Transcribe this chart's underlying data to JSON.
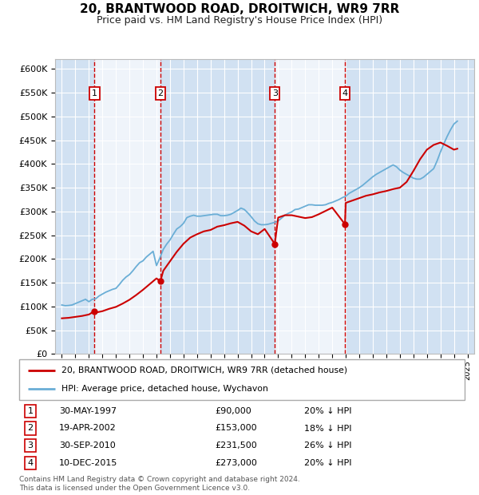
{
  "title": "20, BRANTWOOD ROAD, DROITWICH, WR9 7RR",
  "subtitle": "Price paid vs. HM Land Registry's House Price Index (HPI)",
  "ylim": [
    0,
    620000
  ],
  "xlim": [
    1994.5,
    2025.5
  ],
  "hpi_color": "#6aaed6",
  "price_color": "#cc0000",
  "background_color": "#dce8f5",
  "grid_color": "#ffffff",
  "sales": [
    {
      "label": 1,
      "year": 1997.41,
      "price": 90000,
      "date": "30-MAY-1997",
      "price_str": "£90,000",
      "pct": "20% ↓ HPI"
    },
    {
      "label": 2,
      "year": 2002.29,
      "price": 153000,
      "date": "19-APR-2002",
      "price_str": "£153,000",
      "pct": "18% ↓ HPI"
    },
    {
      "label": 3,
      "year": 2010.75,
      "price": 231500,
      "date": "30-SEP-2010",
      "price_str": "£231,500",
      "pct": "26% ↓ HPI"
    },
    {
      "label": 4,
      "year": 2015.94,
      "price": 273000,
      "date": "10-DEC-2015",
      "price_str": "£273,000",
      "pct": "20% ↓ HPI"
    }
  ],
  "vline_years": [
    1997.41,
    2002.29,
    2010.75,
    2015.94
  ],
  "legend_label_red": "20, BRANTWOOD ROAD, DROITWICH, WR9 7RR (detached house)",
  "legend_label_blue": "HPI: Average price, detached house, Wychavon",
  "footnote": "Contains HM Land Registry data © Crown copyright and database right 2024.\nThis data is licensed under the Open Government Licence v3.0.",
  "hpi_data": [
    [
      1995.0,
      103000
    ],
    [
      1995.25,
      101500
    ],
    [
      1995.5,
      102000
    ],
    [
      1995.75,
      103000
    ],
    [
      1996.0,
      106000
    ],
    [
      1996.25,
      109000
    ],
    [
      1996.5,
      112000
    ],
    [
      1996.75,
      115000
    ],
    [
      1997.0,
      110000
    ],
    [
      1997.25,
      115000
    ],
    [
      1997.5,
      116000
    ],
    [
      1997.75,
      122000
    ],
    [
      1998.0,
      126000
    ],
    [
      1998.25,
      130000
    ],
    [
      1998.5,
      133000
    ],
    [
      1998.75,
      136000
    ],
    [
      1999.0,
      138000
    ],
    [
      1999.25,
      146000
    ],
    [
      1999.5,
      155000
    ],
    [
      1999.75,
      162000
    ],
    [
      2000.0,
      167000
    ],
    [
      2000.25,
      175000
    ],
    [
      2000.5,
      184000
    ],
    [
      2000.75,
      192000
    ],
    [
      2001.0,
      196000
    ],
    [
      2001.25,
      204000
    ],
    [
      2001.5,
      210000
    ],
    [
      2001.75,
      216000
    ],
    [
      2002.0,
      186000
    ],
    [
      2002.25,
      202000
    ],
    [
      2002.5,
      220000
    ],
    [
      2002.75,
      231000
    ],
    [
      2003.0,
      240000
    ],
    [
      2003.25,
      252000
    ],
    [
      2003.5,
      263000
    ],
    [
      2003.75,
      268000
    ],
    [
      2004.0,
      275000
    ],
    [
      2004.25,
      287000
    ],
    [
      2004.5,
      290000
    ],
    [
      2004.75,
      292000
    ],
    [
      2005.0,
      290000
    ],
    [
      2005.25,
      290000
    ],
    [
      2005.5,
      291000
    ],
    [
      2005.75,
      292000
    ],
    [
      2006.0,
      293000
    ],
    [
      2006.25,
      294000
    ],
    [
      2006.5,
      294000
    ],
    [
      2006.75,
      291000
    ],
    [
      2007.0,
      291000
    ],
    [
      2007.25,
      292000
    ],
    [
      2007.5,
      294000
    ],
    [
      2007.75,
      298000
    ],
    [
      2008.0,
      302000
    ],
    [
      2008.25,
      307000
    ],
    [
      2008.5,
      304000
    ],
    [
      2008.75,
      297000
    ],
    [
      2009.0,
      289000
    ],
    [
      2009.25,
      280000
    ],
    [
      2009.5,
      274000
    ],
    [
      2009.75,
      272000
    ],
    [
      2010.0,
      272000
    ],
    [
      2010.25,
      273000
    ],
    [
      2010.5,
      275000
    ],
    [
      2010.75,
      277000
    ],
    [
      2011.0,
      280000
    ],
    [
      2011.25,
      286000
    ],
    [
      2011.5,
      292000
    ],
    [
      2011.75,
      296000
    ],
    [
      2012.0,
      299000
    ],
    [
      2012.25,
      304000
    ],
    [
      2012.5,
      305000
    ],
    [
      2012.75,
      308000
    ],
    [
      2013.0,
      311000
    ],
    [
      2013.25,
      314000
    ],
    [
      2013.5,
      314000
    ],
    [
      2013.75,
      313000
    ],
    [
      2014.0,
      313000
    ],
    [
      2014.25,
      313000
    ],
    [
      2014.5,
      314000
    ],
    [
      2014.75,
      317000
    ],
    [
      2015.0,
      319000
    ],
    [
      2015.25,
      322000
    ],
    [
      2015.5,
      325000
    ],
    [
      2015.75,
      329000
    ],
    [
      2016.0,
      332000
    ],
    [
      2016.25,
      338000
    ],
    [
      2016.5,
      342000
    ],
    [
      2016.75,
      346000
    ],
    [
      2017.0,
      350000
    ],
    [
      2017.25,
      355000
    ],
    [
      2017.5,
      361000
    ],
    [
      2017.75,
      367000
    ],
    [
      2018.0,
      373000
    ],
    [
      2018.25,
      378000
    ],
    [
      2018.5,
      382000
    ],
    [
      2018.75,
      386000
    ],
    [
      2019.0,
      390000
    ],
    [
      2019.25,
      394000
    ],
    [
      2019.5,
      398000
    ],
    [
      2019.75,
      394000
    ],
    [
      2020.0,
      387000
    ],
    [
      2020.25,
      382000
    ],
    [
      2020.5,
      378000
    ],
    [
      2020.75,
      374000
    ],
    [
      2021.0,
      370000
    ],
    [
      2021.25,
      368000
    ],
    [
      2021.5,
      368000
    ],
    [
      2021.75,
      372000
    ],
    [
      2022.0,
      378000
    ],
    [
      2022.25,
      384000
    ],
    [
      2022.5,
      390000
    ],
    [
      2022.75,
      406000
    ],
    [
      2023.0,
      425000
    ],
    [
      2023.25,
      442000
    ],
    [
      2023.5,
      458000
    ],
    [
      2023.75,
      472000
    ],
    [
      2024.0,
      484000
    ],
    [
      2024.25,
      490000
    ]
  ],
  "price_data": [
    [
      1995.0,
      75000
    ],
    [
      1995.5,
      76000
    ],
    [
      1996.0,
      78000
    ],
    [
      1996.5,
      80000
    ],
    [
      1997.0,
      83000
    ],
    [
      1997.41,
      90000
    ],
    [
      1997.5,
      87000
    ],
    [
      1998.0,
      90000
    ],
    [
      1998.5,
      95000
    ],
    [
      1999.0,
      99000
    ],
    [
      1999.5,
      106000
    ],
    [
      2000.0,
      114000
    ],
    [
      2000.5,
      124000
    ],
    [
      2001.0,
      135000
    ],
    [
      2001.5,
      147000
    ],
    [
      2002.0,
      159000
    ],
    [
      2002.29,
      153000
    ],
    [
      2002.5,
      175000
    ],
    [
      2003.0,
      195000
    ],
    [
      2003.5,
      215000
    ],
    [
      2004.0,
      232000
    ],
    [
      2004.5,
      245000
    ],
    [
      2005.0,
      252000
    ],
    [
      2005.5,
      258000
    ],
    [
      2006.0,
      261000
    ],
    [
      2006.5,
      268000
    ],
    [
      2007.0,
      271000
    ],
    [
      2007.5,
      275000
    ],
    [
      2008.0,
      278000
    ],
    [
      2008.5,
      270000
    ],
    [
      2009.0,
      258000
    ],
    [
      2009.5,
      252000
    ],
    [
      2010.0,
      263000
    ],
    [
      2010.75,
      231500
    ],
    [
      2011.0,
      287000
    ],
    [
      2011.5,
      292000
    ],
    [
      2012.0,
      292000
    ],
    [
      2012.5,
      289000
    ],
    [
      2013.0,
      286000
    ],
    [
      2013.5,
      288000
    ],
    [
      2014.0,
      294000
    ],
    [
      2014.5,
      301000
    ],
    [
      2015.0,
      308000
    ],
    [
      2015.94,
      273000
    ],
    [
      2016.0,
      318000
    ],
    [
      2016.5,
      323000
    ],
    [
      2017.0,
      328000
    ],
    [
      2017.5,
      333000
    ],
    [
      2018.0,
      336000
    ],
    [
      2018.5,
      340000
    ],
    [
      2019.0,
      343000
    ],
    [
      2019.5,
      347000
    ],
    [
      2020.0,
      350000
    ],
    [
      2020.5,
      362000
    ],
    [
      2021.0,
      385000
    ],
    [
      2021.5,
      410000
    ],
    [
      2022.0,
      430000
    ],
    [
      2022.5,
      440000
    ],
    [
      2023.0,
      445000
    ],
    [
      2023.5,
      438000
    ],
    [
      2024.0,
      430000
    ],
    [
      2024.25,
      432000
    ]
  ]
}
